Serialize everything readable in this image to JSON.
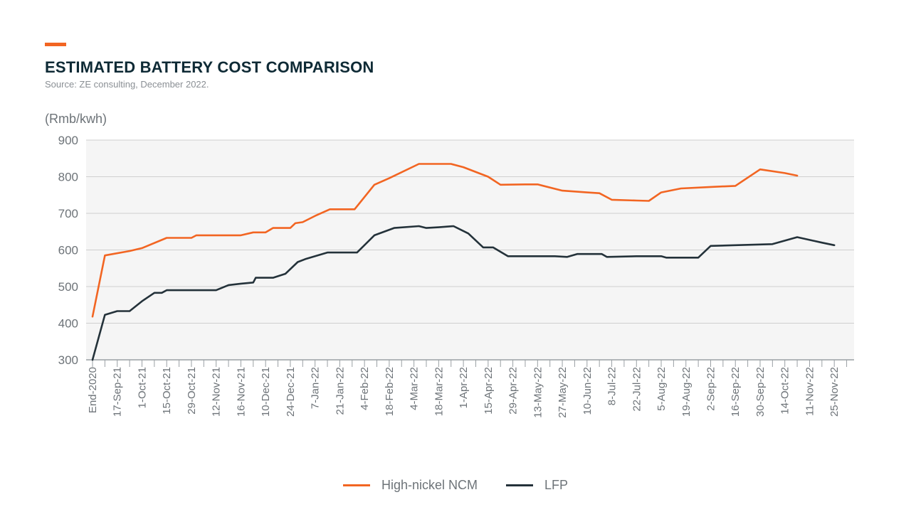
{
  "header": {
    "title": "ESTIMATED BATTERY COST COMPARISON",
    "source": "Source: ZE consulting, December 2022."
  },
  "colors": {
    "ncm": "#f26522",
    "lfp": "#24323a",
    "plot_bg": "#f5f5f5",
    "grid": "#cfcfcf",
    "accent": "#f26522"
  },
  "chart_data": {
    "type": "line",
    "title": "ESTIMATED BATTERY COST COMPARISON",
    "ylabel": "(Rmb/kwh)",
    "ylim": [
      300,
      900
    ],
    "yticks": [
      300,
      400,
      500,
      600,
      700,
      800,
      900
    ],
    "grid": true,
    "legend": "bottom-center",
    "x_labels": [
      "End-2020",
      "17-Sep-21",
      "1-Oct-21",
      "15-Oct-21",
      "29-Oct-21",
      "12-Nov-21",
      "16-Nov-21",
      "10-Dec-21",
      "24-Dec-21",
      "7-Jan-22",
      "21-Jan-22",
      "4-Feb-22",
      "18-Feb-22",
      "4-Mar-22",
      "18-Mar-22",
      "1-Apr-22",
      "15-Apr-22",
      "29-Apr-22",
      "13-May-22",
      "27-May-22",
      "10-Jun-22",
      "8-Jul-22",
      "22-Jul-22",
      "5-Aug-22",
      "19-Aug-22",
      "2-Sep-22",
      "16-Sep-22",
      "30-Sep-22",
      "14-Oct-22",
      "11-Nov-22",
      "25-Nov-22"
    ],
    "series": [
      {
        "name": "High-nickel NCM",
        "points": [
          [
            0,
            418
          ],
          [
            0.5,
            585
          ],
          [
            1.5,
            597
          ],
          [
            2,
            605
          ],
          [
            3,
            633
          ],
          [
            4,
            633
          ],
          [
            4.2,
            640
          ],
          [
            5,
            640
          ],
          [
            6,
            640
          ],
          [
            6.5,
            648
          ],
          [
            7,
            648
          ],
          [
            7.3,
            660
          ],
          [
            8,
            660
          ],
          [
            8.2,
            673
          ],
          [
            8.5,
            676
          ],
          [
            9,
            693
          ],
          [
            9.6,
            711
          ],
          [
            10.6,
            711
          ],
          [
            11.4,
            778
          ],
          [
            12,
            796
          ],
          [
            13.2,
            835
          ],
          [
            14.5,
            835
          ],
          [
            15,
            826
          ],
          [
            16,
            800
          ],
          [
            16.5,
            778
          ],
          [
            17.5,
            779
          ],
          [
            18,
            779
          ],
          [
            19,
            762
          ],
          [
            20,
            757
          ],
          [
            20.5,
            755
          ],
          [
            21,
            737
          ],
          [
            22,
            735
          ],
          [
            22.5,
            734
          ],
          [
            23,
            757
          ],
          [
            23.8,
            768
          ],
          [
            25,
            772
          ],
          [
            26,
            775
          ],
          [
            27,
            820
          ],
          [
            28,
            810
          ],
          [
            28.5,
            803
          ]
        ]
      },
      {
        "name": "LFP",
        "points": [
          [
            0,
            300
          ],
          [
            0.5,
            423
          ],
          [
            1,
            433
          ],
          [
            1.5,
            433
          ],
          [
            2,
            460
          ],
          [
            2.5,
            483
          ],
          [
            2.8,
            483
          ],
          [
            3,
            490
          ],
          [
            4,
            490
          ],
          [
            5,
            490
          ],
          [
            5.5,
            504
          ],
          [
            6,
            508
          ],
          [
            6.5,
            511
          ],
          [
            6.6,
            524
          ],
          [
            7.3,
            524
          ],
          [
            7.8,
            535
          ],
          [
            8.3,
            567
          ],
          [
            8.6,
            575
          ],
          [
            9.5,
            593
          ],
          [
            10.7,
            593
          ],
          [
            11.4,
            640
          ],
          [
            12.2,
            660
          ],
          [
            13.2,
            665
          ],
          [
            13.5,
            660
          ],
          [
            14,
            662
          ],
          [
            14.6,
            665
          ],
          [
            15.2,
            645
          ],
          [
            15.8,
            607
          ],
          [
            16.2,
            607
          ],
          [
            16.8,
            583
          ],
          [
            18,
            583
          ],
          [
            18.7,
            583
          ],
          [
            19.2,
            581
          ],
          [
            19.6,
            589
          ],
          [
            20.6,
            589
          ],
          [
            20.8,
            581
          ],
          [
            22,
            583
          ],
          [
            23,
            583
          ],
          [
            23.2,
            579
          ],
          [
            24.5,
            579
          ],
          [
            25,
            611
          ],
          [
            26.5,
            614
          ],
          [
            27.5,
            616
          ],
          [
            28.5,
            635
          ],
          [
            29.5,
            620
          ],
          [
            30,
            613
          ]
        ]
      }
    ]
  }
}
